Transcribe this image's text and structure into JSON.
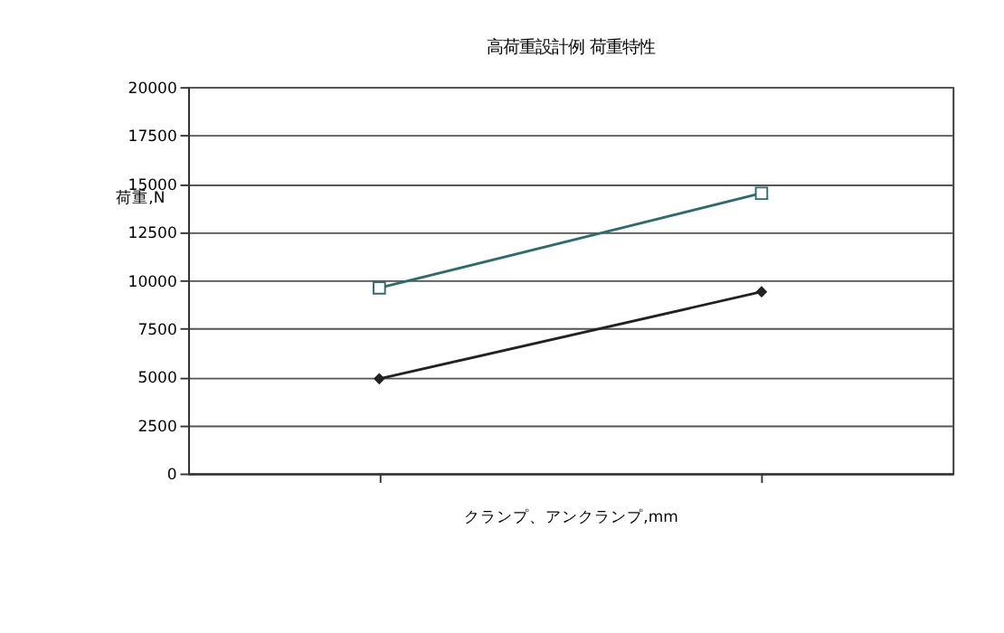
{
  "chart_data": {
    "type": "line",
    "title": "高荷重設計例  荷重特性",
    "xlabel": "クランプ、アンクランプ,mm",
    "ylabel": "荷重,N",
    "categories": [
      null,
      null
    ],
    "series": [
      {
        "color": "#222222",
        "marker": "diamond",
        "values": [
          4900,
          9400
        ]
      },
      {
        "color": "#2e6b6b",
        "marker": "square",
        "values": [
          9600,
          14500
        ]
      }
    ],
    "ylim": [
      0,
      20000
    ],
    "yticks": [
      0,
      2500,
      5000,
      7500,
      10000,
      12500,
      15000,
      17500,
      20000
    ],
    "grid": "y",
    "tick_labels": "y"
  }
}
